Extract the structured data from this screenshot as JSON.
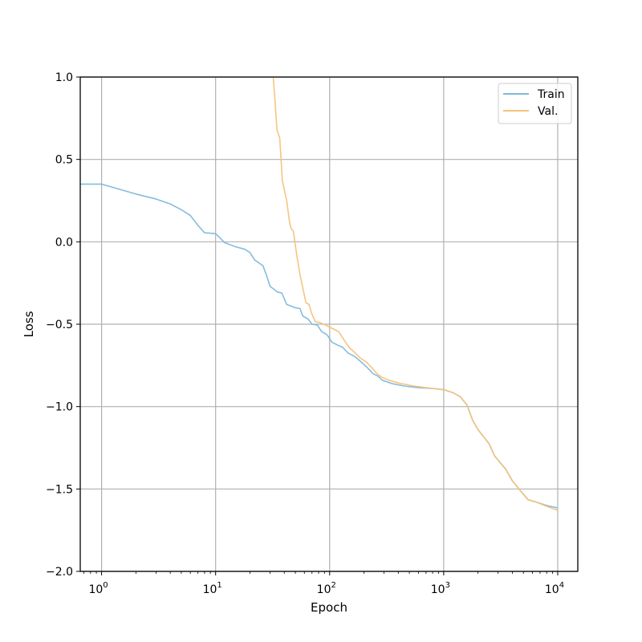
{
  "chart_data": {
    "type": "line",
    "xlabel": "Epoch",
    "ylabel": "Loss",
    "x_scale": "log",
    "xlim": [
      0.65,
      15000
    ],
    "ylim": [
      -2.0,
      1.0
    ],
    "grid": true,
    "legend_position": "top-right",
    "x_ticks": [
      {
        "value": 1,
        "base": "10",
        "exp": "0"
      },
      {
        "value": 10,
        "base": "10",
        "exp": "1"
      },
      {
        "value": 100,
        "base": "10",
        "exp": "2"
      },
      {
        "value": 1000,
        "base": "10",
        "exp": "3"
      },
      {
        "value": 10000,
        "base": "10",
        "exp": "4"
      }
    ],
    "y_ticks": [
      {
        "value": 1.0,
        "label": "1.0"
      },
      {
        "value": 0.5,
        "label": "0.5"
      },
      {
        "value": 0.0,
        "label": "0.0"
      },
      {
        "value": -0.5,
        "label": "−0.5"
      },
      {
        "value": -1.0,
        "label": "−1.0"
      },
      {
        "value": -1.5,
        "label": "−1.5"
      },
      {
        "value": -2.0,
        "label": "−2.0"
      }
    ],
    "series": [
      {
        "name": "Train",
        "color": "#7fb8dc",
        "points": [
          [
            0.65,
            0.35
          ],
          [
            1,
            0.35
          ],
          [
            1.5,
            0.315
          ],
          [
            2,
            0.29
          ],
          [
            3,
            0.26
          ],
          [
            4,
            0.23
          ],
          [
            5,
            0.195
          ],
          [
            6,
            0.16
          ],
          [
            7,
            0.1
          ],
          [
            8,
            0.055
          ],
          [
            10,
            0.05
          ],
          [
            12,
            -0.005
          ],
          [
            15,
            -0.03
          ],
          [
            18,
            -0.045
          ],
          [
            20,
            -0.065
          ],
          [
            22,
            -0.11
          ],
          [
            26,
            -0.145
          ],
          [
            28,
            -0.205
          ],
          [
            30,
            -0.27
          ],
          [
            35,
            -0.305
          ],
          [
            38,
            -0.31
          ],
          [
            42,
            -0.38
          ],
          [
            50,
            -0.4
          ],
          [
            55,
            -0.405
          ],
          [
            58,
            -0.45
          ],
          [
            65,
            -0.47
          ],
          [
            70,
            -0.5
          ],
          [
            78,
            -0.505
          ],
          [
            85,
            -0.545
          ],
          [
            95,
            -0.565
          ],
          [
            105,
            -0.61
          ],
          [
            120,
            -0.63
          ],
          [
            130,
            -0.64
          ],
          [
            145,
            -0.675
          ],
          [
            165,
            -0.695
          ],
          [
            190,
            -0.73
          ],
          [
            215,
            -0.765
          ],
          [
            240,
            -0.8
          ],
          [
            265,
            -0.815
          ],
          [
            290,
            -0.84
          ],
          [
            350,
            -0.86
          ],
          [
            450,
            -0.875
          ],
          [
            600,
            -0.885
          ],
          [
            800,
            -0.89
          ],
          [
            1000,
            -0.897
          ],
          [
            1200,
            -0.915
          ],
          [
            1400,
            -0.94
          ],
          [
            1600,
            -0.99
          ],
          [
            1800,
            -1.085
          ],
          [
            2000,
            -1.14
          ],
          [
            2500,
            -1.225
          ],
          [
            2800,
            -1.3
          ],
          [
            3500,
            -1.38
          ],
          [
            4000,
            -1.45
          ],
          [
            4700,
            -1.51
          ],
          [
            5500,
            -1.565
          ],
          [
            6500,
            -1.58
          ],
          [
            8000,
            -1.6
          ],
          [
            10000,
            -1.615
          ]
        ]
      },
      {
        "name": "Val.",
        "color": "#f4c27a",
        "points": [
          [
            32,
            1.0
          ],
          [
            33,
            0.88
          ],
          [
            34.5,
            0.68
          ],
          [
            36.5,
            0.63
          ],
          [
            38.5,
            0.37
          ],
          [
            42,
            0.25
          ],
          [
            44.5,
            0.12
          ],
          [
            46,
            0.08
          ],
          [
            48,
            0.065
          ],
          [
            50,
            -0.02
          ],
          [
            52,
            -0.1
          ],
          [
            55,
            -0.2
          ],
          [
            59,
            -0.3
          ],
          [
            62,
            -0.37
          ],
          [
            66,
            -0.38
          ],
          [
            70,
            -0.44
          ],
          [
            75,
            -0.485
          ],
          [
            82,
            -0.49
          ],
          [
            92,
            -0.505
          ],
          [
            105,
            -0.525
          ],
          [
            120,
            -0.545
          ],
          [
            135,
            -0.6
          ],
          [
            150,
            -0.645
          ],
          [
            165,
            -0.67
          ],
          [
            185,
            -0.705
          ],
          [
            210,
            -0.73
          ],
          [
            235,
            -0.765
          ],
          [
            260,
            -0.8
          ],
          [
            285,
            -0.82
          ],
          [
            330,
            -0.84
          ],
          [
            420,
            -0.86
          ],
          [
            550,
            -0.875
          ],
          [
            700,
            -0.885
          ],
          [
            850,
            -0.892
          ],
          [
            1000,
            -0.897
          ],
          [
            1200,
            -0.915
          ],
          [
            1400,
            -0.94
          ],
          [
            1600,
            -0.99
          ],
          [
            1800,
            -1.085
          ],
          [
            2000,
            -1.14
          ],
          [
            2500,
            -1.225
          ],
          [
            2800,
            -1.3
          ],
          [
            3500,
            -1.38
          ],
          [
            4000,
            -1.45
          ],
          [
            4700,
            -1.51
          ],
          [
            5500,
            -1.565
          ],
          [
            6500,
            -1.58
          ],
          [
            8000,
            -1.605
          ],
          [
            10000,
            -1.63
          ]
        ]
      }
    ]
  }
}
